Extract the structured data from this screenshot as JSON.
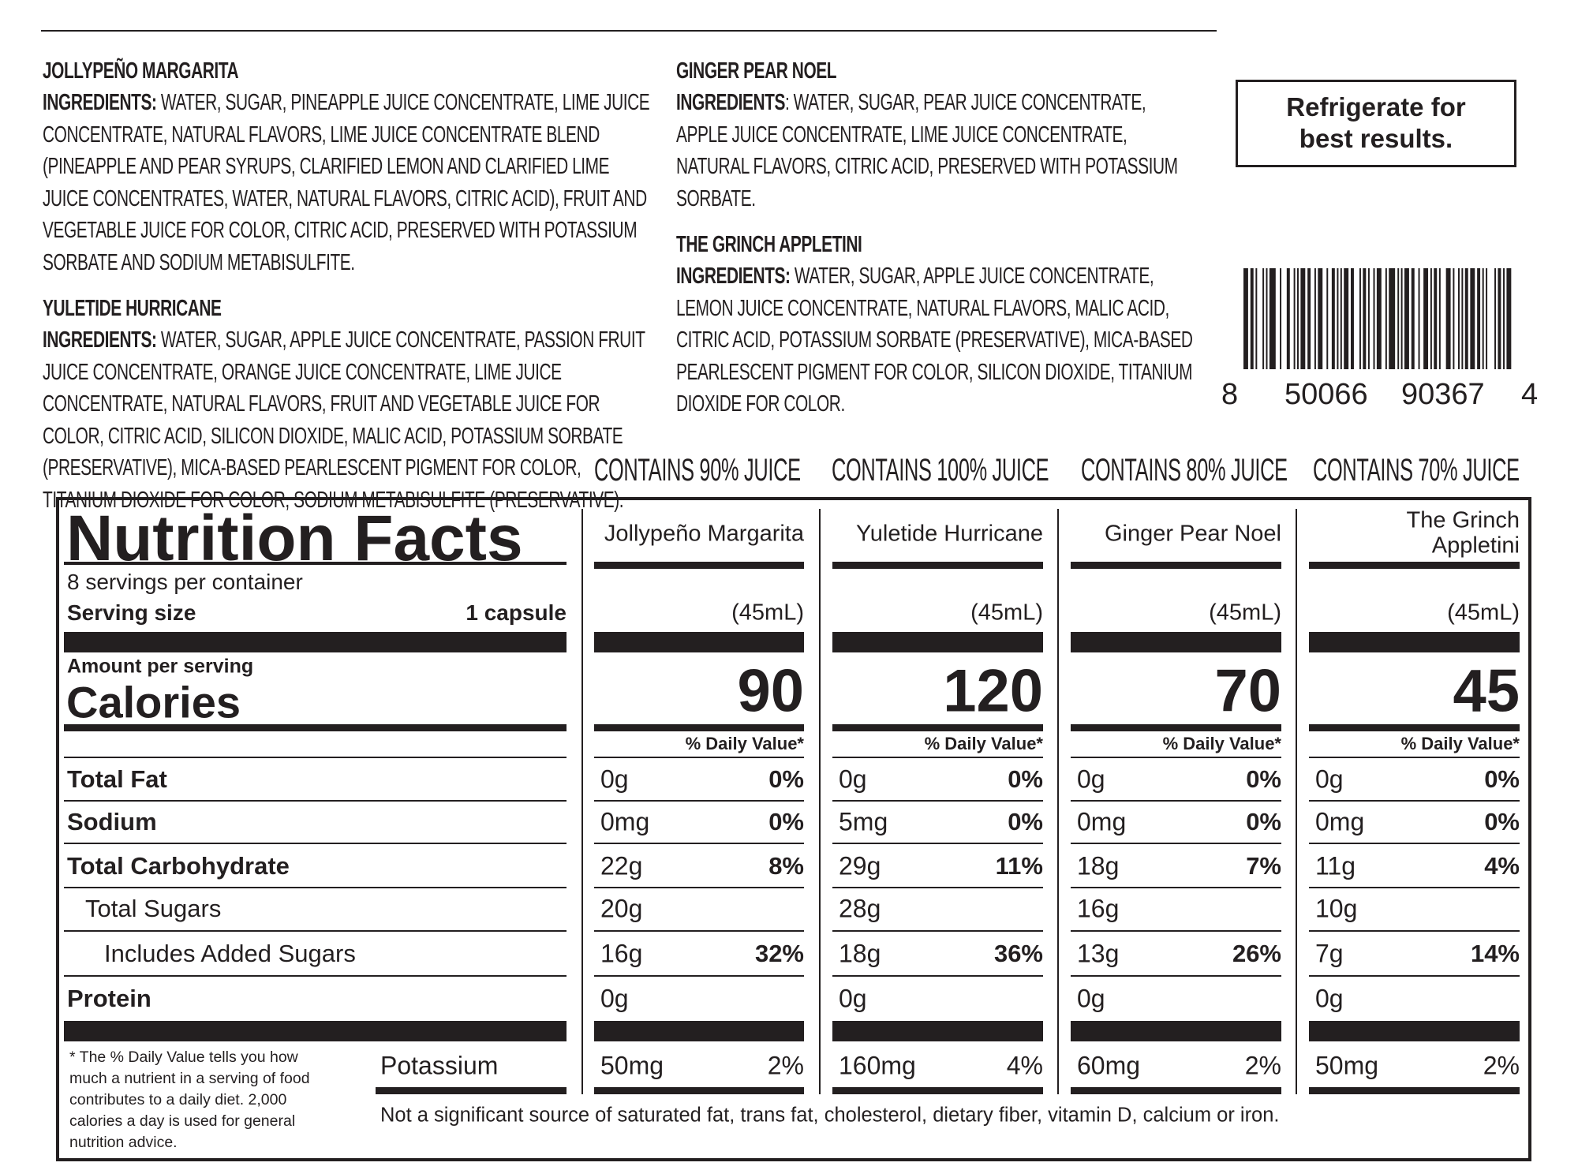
{
  "ingredients": [
    {
      "name": "JOLLYPEÑO MARGARITA",
      "label": "INGREDIENTS:",
      "text": " WATER, SUGAR, PINEAPPLE JUICE CONCENTRATE, LIME JUICE CONCENTRATE, NATURAL FLAVORS, LIME JUICE CONCENTRATE BLEND (PINEAPPLE AND PEAR SYRUPS, CLARIFIED LEMON AND CLARIFIED LIME JUICE CONCENTRATES, WATER, NATURAL FLAVORS, CITRIC ACID), FRUIT AND VEGETABLE JUICE FOR COLOR, CITRIC ACID, PRESERVED WITH POTASSIUM SORBATE AND SODIUM METABISULFITE."
    },
    {
      "name": "YULETIDE HURRICANE",
      "label": "INGREDIENTS:",
      "text": " WATER, SUGAR, APPLE JUICE CONCENTRATE, PASSION FRUIT JUICE CONCENTRATE, ORANGE JUICE CONCENTRATE, LIME JUICE CONCENTRATE, NATURAL FLAVORS, FRUIT AND VEGETABLE JUICE FOR COLOR, CITRIC ACID, SILICON DIOXIDE, MALIC ACID, POTASSIUM SORBATE (PRESERVATIVE), MICA-BASED PEARLESCENT PIGMENT FOR COLOR, TITANIUM DIOXIDE FOR COLOR, SODIUM METABISULFITE (PRESERVATIVE)."
    },
    {
      "name": "GINGER PEAR NOEL",
      "label": "INGREDIENTS",
      "text": ": WATER, SUGAR, PEAR JUICE CONCENTRATE, APPLE JUICE CONCENTRATE, LIME JUICE CONCENTRATE, NATURAL FLAVORS, CITRIC ACID, PRESERVED WITH POTASSIUM SORBATE."
    },
    {
      "name": "THE GRINCH APPLETINI",
      "label": "INGREDIENTS:",
      "text": " WATER, SUGAR, APPLE JUICE CONCENTRATE, LEMON JUICE CONCENTRATE, NATURAL FLAVORS, MALIC ACID, CITRIC ACID, POTASSIUM SORBATE (PRESERVATIVE), MICA-BASED PEARLESCENT PIGMENT FOR COLOR, SILICON DIOXIDE, TITANIUM DIOXIDE FOR COLOR."
    }
  ],
  "refrigerate": {
    "line1": "Refrigerate for",
    "line2": "best results."
  },
  "barcode": {
    "first": "8",
    "left": "50066",
    "right": "90367",
    "check": "4"
  },
  "juice_labels": [
    "CONTAINS 90% JUICE",
    "CONTAINS 100% JUICE",
    "CONTAINS 80% JUICE",
    "CONTAINS 70% JUICE"
  ],
  "nutrition": {
    "title": "Nutrition Facts",
    "servings": "8 servings per container",
    "serving_size_label": "Serving size",
    "serving_size_value": "1 capsule",
    "amount_per_serving": "Amount per serving",
    "calories_label": "Calories",
    "dv_header": "% Daily Value*",
    "footnote": "* The % Daily Value tells you how much a nutrient in a serving of food contributes to a daily diet. 2,000 calories a day is used for general nutrition advice.",
    "not_significant": "Not a significant source of saturated fat, trans fat, cholesterol, dietary fiber, vitamin D, calcium or iron.",
    "potassium_label": "Potassium",
    "products": [
      {
        "name": "Jollypeño Margarita",
        "name2": "",
        "volume": "(45mL)",
        "calories": "90"
      },
      {
        "name": "Yuletide Hurricane",
        "name2": "",
        "volume": "(45mL)",
        "calories": "120"
      },
      {
        "name": "Ginger Pear Noel",
        "name2": "",
        "volume": "(45mL)",
        "calories": "70"
      },
      {
        "name": "The Grinch",
        "name2": "Appletini",
        "volume": "(45mL)",
        "calories": "45"
      }
    ],
    "rows": [
      {
        "label": "Total Fat",
        "style": "bold",
        "values": [
          [
            "0g",
            "0%"
          ],
          [
            "0g",
            "0%"
          ],
          [
            "0g",
            "0%"
          ],
          [
            "0g",
            "0%"
          ]
        ]
      },
      {
        "label": "Sodium",
        "style": "bold",
        "values": [
          [
            "0mg",
            "0%"
          ],
          [
            "5mg",
            "0%"
          ],
          [
            "0mg",
            "0%"
          ],
          [
            "0mg",
            "0%"
          ]
        ]
      },
      {
        "label": "Total Carbohydrate",
        "style": "bold",
        "values": [
          [
            "22g",
            "8%"
          ],
          [
            "29g",
            "11%"
          ],
          [
            "18g",
            "7%"
          ],
          [
            "11g",
            "4%"
          ]
        ]
      },
      {
        "label": "Total Sugars",
        "style": "indent1",
        "values": [
          [
            "20g",
            ""
          ],
          [
            "28g",
            ""
          ],
          [
            "16g",
            ""
          ],
          [
            "10g",
            ""
          ]
        ]
      },
      {
        "label": "Includes Added Sugars",
        "style": "indent2",
        "values": [
          [
            "16g",
            "32%"
          ],
          [
            "18g",
            "36%"
          ],
          [
            "13g",
            "26%"
          ],
          [
            "7g",
            "14%"
          ]
        ]
      },
      {
        "label": "Protein",
        "style": "bold",
        "values": [
          [
            "0g",
            ""
          ],
          [
            "0g",
            ""
          ],
          [
            "0g",
            ""
          ],
          [
            "0g",
            ""
          ]
        ]
      }
    ],
    "potassium": [
      [
        "50mg",
        "2%"
      ],
      [
        "160mg",
        "4%"
      ],
      [
        "60mg",
        "2%"
      ],
      [
        "50mg",
        "2%"
      ]
    ]
  }
}
